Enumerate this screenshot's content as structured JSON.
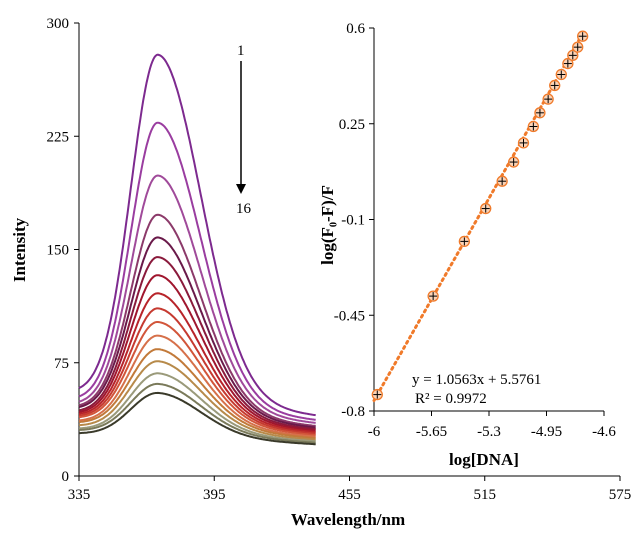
{
  "chart_data": [
    {
      "type": "line",
      "title": "",
      "xlabel": "Wavelength/nm",
      "ylabel": "Intensity",
      "xlim": [
        335,
        575
      ],
      "ylim": [
        0,
        300
      ],
      "x_ticks": [
        335,
        395,
        455,
        515,
        575
      ],
      "y_ticks": [
        0,
        75,
        150,
        225,
        300
      ],
      "grid": false,
      "legend": "none",
      "peak_wavelength": 370,
      "x_range_data": [
        335,
        440
      ],
      "series": [
        {
          "peak": 279,
          "start": 55,
          "end": 40,
          "color": "#7d2a8f"
        },
        {
          "peak": 234,
          "start": 50,
          "end": 37,
          "color": "#9a3da0"
        },
        {
          "peak": 199,
          "start": 47,
          "end": 35,
          "color": "#a04a9a"
        },
        {
          "peak": 173,
          "start": 45,
          "end": 33,
          "color": "#8c3a6a"
        },
        {
          "peak": 158,
          "start": 44,
          "end": 32,
          "color": "#6a1a4a"
        },
        {
          "peak": 145,
          "start": 42,
          "end": 31,
          "color": "#8a1a3c"
        },
        {
          "peak": 133,
          "start": 41,
          "end": 30,
          "color": "#a0162e"
        },
        {
          "peak": 121,
          "start": 40,
          "end": 29,
          "color": "#b8242a"
        },
        {
          "peak": 111,
          "start": 39,
          "end": 28,
          "color": "#c63a30"
        },
        {
          "peak": 102,
          "start": 38,
          "end": 27,
          "color": "#d2553a"
        },
        {
          "peak": 93,
          "start": 36,
          "end": 26,
          "color": "#d6704a"
        },
        {
          "peak": 84,
          "start": 35,
          "end": 25,
          "color": "#c27a3a"
        },
        {
          "peak": 76,
          "start": 33,
          "end": 24,
          "color": "#b78a4a"
        },
        {
          "peak": 68,
          "start": 31,
          "end": 23,
          "color": "#9a9a7a"
        },
        {
          "peak": 61,
          "start": 30,
          "end": 22,
          "color": "#7a7a5a"
        },
        {
          "peak": 55,
          "start": 28,
          "end": 21,
          "color": "#3a3a2a"
        }
      ],
      "annotations": {
        "label_top": "1",
        "label_bottom": "16"
      }
    },
    {
      "type": "scatter",
      "title": "",
      "xlabel": "log[DNA]",
      "ylabel": "log(F₀-F)/F",
      "xlim": [
        -6,
        -4.6
      ],
      "ylim": [
        -0.8,
        0.6
      ],
      "x_ticks": [
        -6,
        -5.65,
        -5.3,
        -4.95,
        -4.6
      ],
      "y_ticks": [
        -0.8,
        -0.45,
        -0.1,
        0.25,
        0.6
      ],
      "marker_color": "#f07a2a",
      "trendline_color": "#f07a2a",
      "trendline": {
        "slope": 1.0563,
        "intercept": 5.5761,
        "x_from": -6.0,
        "x_to": -4.73
      },
      "points": [
        {
          "x": -5.98,
          "y": -0.74
        },
        {
          "x": -5.64,
          "y": -0.38
        },
        {
          "x": -5.45,
          "y": -0.18
        },
        {
          "x": -5.32,
          "y": -0.06
        },
        {
          "x": -5.22,
          "y": 0.04
        },
        {
          "x": -5.15,
          "y": 0.11
        },
        {
          "x": -5.09,
          "y": 0.18
        },
        {
          "x": -5.03,
          "y": 0.24
        },
        {
          "x": -4.99,
          "y": 0.29
        },
        {
          "x": -4.94,
          "y": 0.34
        },
        {
          "x": -4.9,
          "y": 0.39
        },
        {
          "x": -4.86,
          "y": 0.43
        },
        {
          "x": -4.82,
          "y": 0.47
        },
        {
          "x": -4.79,
          "y": 0.5
        },
        {
          "x": -4.76,
          "y": 0.53
        },
        {
          "x": -4.73,
          "y": 0.57
        }
      ],
      "equation": "y = 1.0563x + 5.5761",
      "r_squared": "R² = 0.9972"
    }
  ]
}
